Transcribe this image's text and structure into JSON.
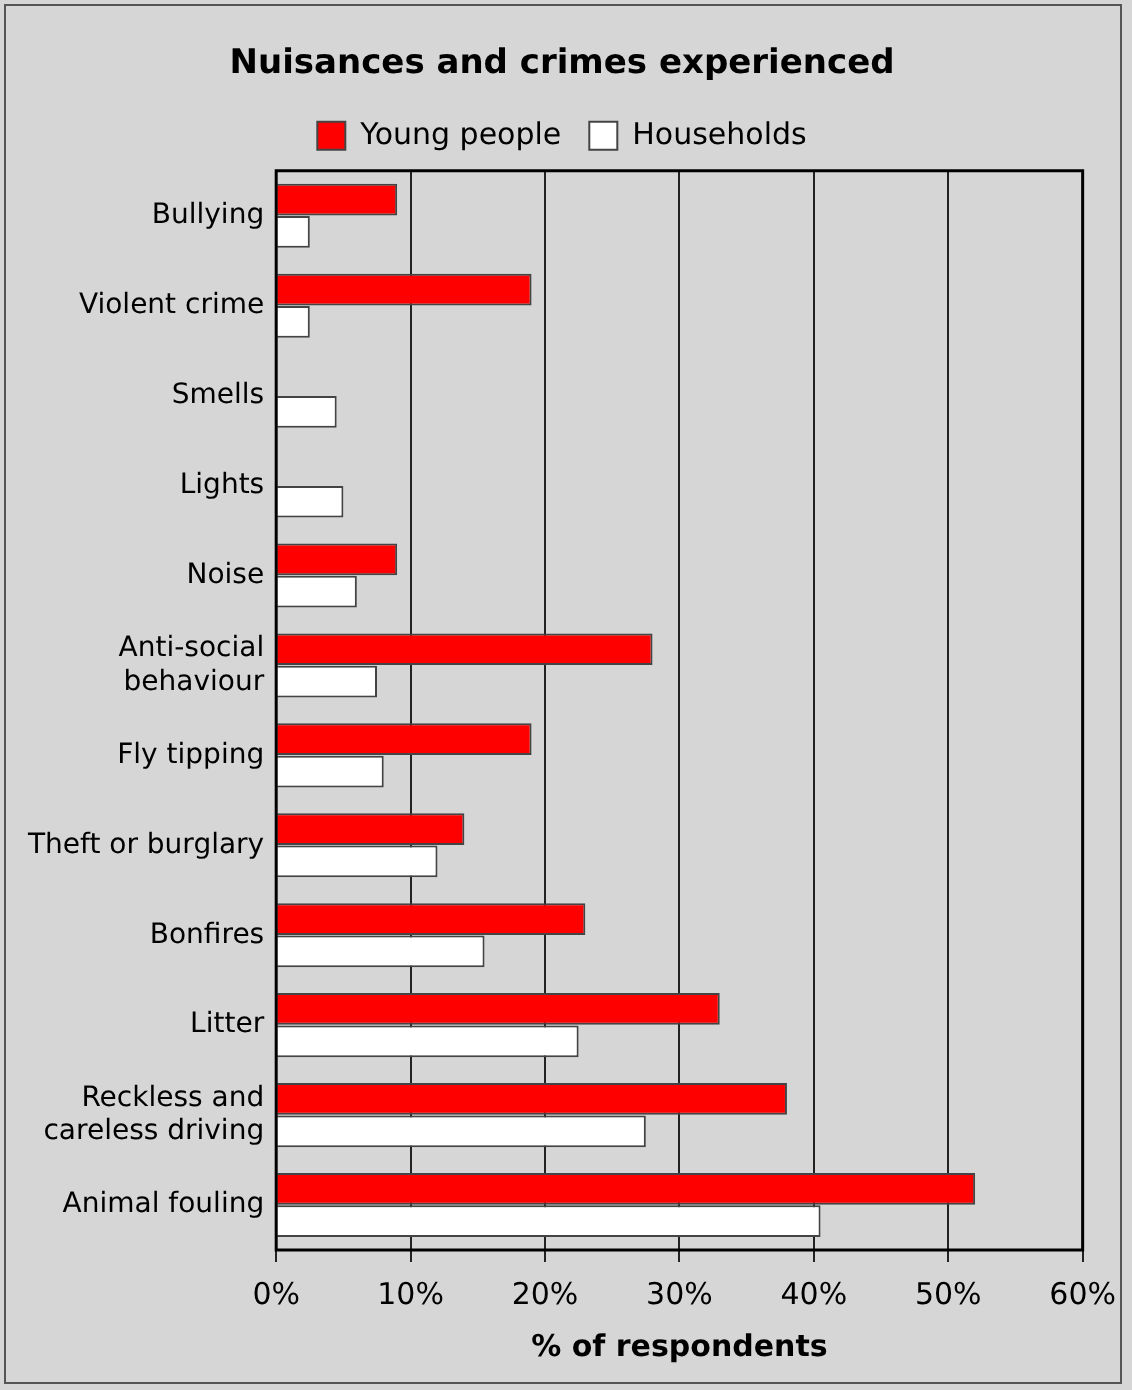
{
  "chart_data": {
    "type": "bar",
    "orientation": "horizontal",
    "title": "Nuisances and crimes experienced",
    "xlabel": "% of respondents",
    "categories": [
      "Bullying",
      "Violent crime",
      "Smells",
      "Lights",
      "Noise",
      "Anti-social behaviour",
      "Fly tipping",
      "Theft or burglary",
      "Bonfires",
      "Litter",
      "Reckless and careless driving",
      "Animal fouling"
    ],
    "series": [
      {
        "name": "Young people",
        "color": "#ff0000",
        "values": [
          9,
          19,
          null,
          null,
          9,
          28,
          19,
          14,
          23,
          33,
          38,
          52
        ]
      },
      {
        "name": "Households",
        "color": "#ffffff",
        "values": [
          2.5,
          2.5,
          4.5,
          5,
          6,
          7.5,
          8,
          12,
          15.5,
          22.5,
          27.5,
          40.5
        ]
      }
    ],
    "xlim": [
      0,
      60
    ],
    "xticks": [
      {
        "value": 0,
        "label": "0%"
      },
      {
        "value": 10,
        "label": "10%"
      },
      {
        "value": 20,
        "label": "20%"
      },
      {
        "value": 30,
        "label": "30%"
      },
      {
        "value": 40,
        "label": "40%"
      },
      {
        "value": 50,
        "label": "50%"
      },
      {
        "value": 60,
        "label": "60%"
      }
    ],
    "grid": "x",
    "legend": "top"
  }
}
